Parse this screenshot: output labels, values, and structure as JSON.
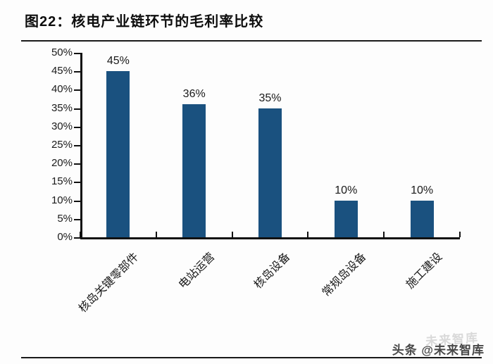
{
  "header": {
    "title": "图22：核电产业链环节的毛利率比较"
  },
  "chart_data": {
    "type": "bar",
    "title": "核电产业链环节的毛利率比较",
    "categories": [
      "核岛关键零部件",
      "电站运营",
      "核岛设备",
      "常规岛设备",
      "施工建设"
    ],
    "values": [
      45,
      36,
      35,
      10,
      10
    ],
    "data_labels": [
      "45%",
      "36%",
      "35%",
      "10%",
      "10%"
    ],
    "xlabel": "",
    "ylabel": "",
    "ylim": [
      0,
      50
    ],
    "ytick_step": 5,
    "ytick_labels": [
      "0%",
      "5%",
      "10%",
      "15%",
      "20%",
      "25%",
      "30%",
      "35%",
      "40%",
      "45%",
      "50%"
    ],
    "grid": false,
    "legend_position": "none",
    "bar_color": "#1a517f",
    "axis_color": "#111111"
  },
  "footer": {
    "watermark": "头条 @未来智库",
    "watermark_ghost": "未来智库"
  }
}
